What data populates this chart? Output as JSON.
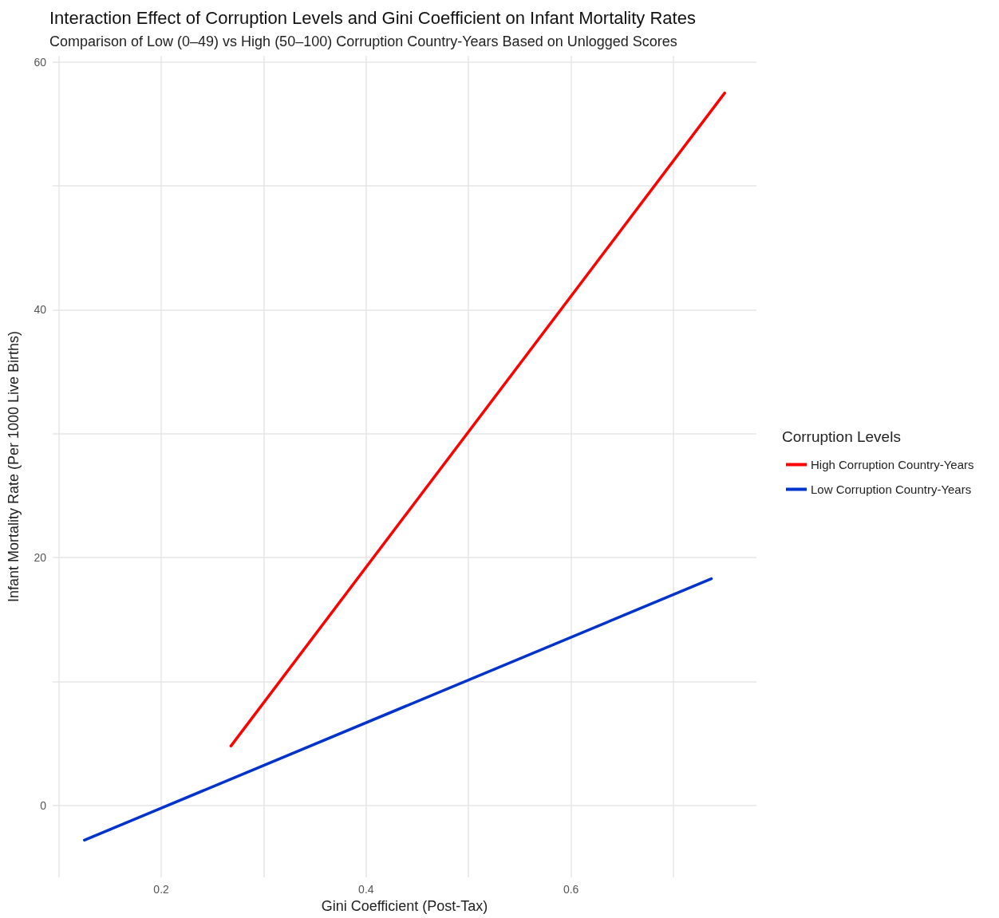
{
  "chart_data": {
    "type": "line",
    "title": "Interaction Effect of Corruption Levels and Gini Coefficient on Infant Mortality Rates",
    "subtitle": "Comparison of Low (0–49) vs High (50–100) Corruption Country-Years Based on Unlogged Scores",
    "xlabel": "Gini Coefficient (Post-Tax)",
    "ylabel": "Infant Mortality Rate (Per 1000 Live Births)",
    "legend_title": "Corruption Levels",
    "legend": "right",
    "grid": true,
    "marker": "none",
    "line_style": "solid",
    "xlim": [
      0.094,
      0.781
    ],
    "ylim": [
      -5.8,
      60.5
    ],
    "xticks": [
      {
        "value": 0.1,
        "label": null
      },
      0.2,
      {
        "value": 0.3,
        "label": null
      },
      0.4,
      {
        "value": 0.5,
        "label": null
      },
      0.6,
      {
        "value": 0.7,
        "label": null
      }
    ],
    "yticks": [
      0,
      {
        "value": 10,
        "label": null
      },
      20,
      {
        "value": 30,
        "label": null
      },
      40,
      {
        "value": 50,
        "label": null
      },
      60
    ],
    "series": [
      {
        "name": "High Corruption Country-Years",
        "color": "#ff0000",
        "x": [
          0.268,
          0.75
        ],
        "values": [
          4.8,
          57.5
        ]
      },
      {
        "name": "Low Corruption Country-Years",
        "color": "#0033cc",
        "x": [
          0.125,
          0.737
        ],
        "values": [
          -2.8,
          18.3
        ]
      }
    ]
  }
}
